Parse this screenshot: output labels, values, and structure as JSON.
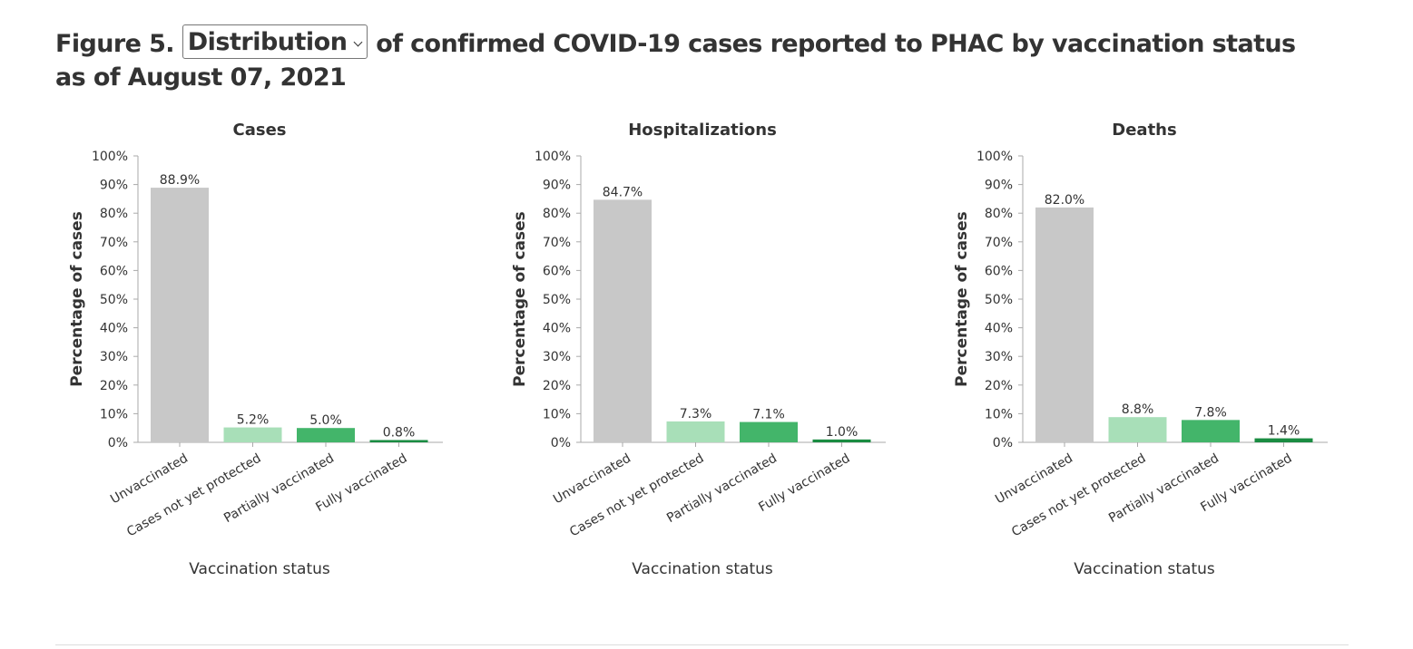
{
  "figure": {
    "label": "Figure 5.",
    "selector_value": "Distribution",
    "title_rest": "of confirmed COVID-19 cases reported to PHAC by vaccination status as of August 07, 2021"
  },
  "colors": {
    "unvaccinated": "#c8c8c8",
    "not_yet_protected": "#a8dfb8",
    "partially_vaccinated": "#43b56a",
    "fully_vaccinated": "#1a8c42",
    "axis": "#aaaaaa",
    "text": "#333333"
  },
  "chart_data": [
    {
      "type": "bar",
      "title": "Cases",
      "xlabel": "Vaccination status",
      "ylabel": "Percentage of cases",
      "ylim": [
        0,
        100
      ],
      "yticks": [
        "0%",
        "10%",
        "20%",
        "30%",
        "40%",
        "50%",
        "60%",
        "70%",
        "80%",
        "90%",
        "100%"
      ],
      "categories": [
        "Unvaccinated",
        "Cases not yet protected",
        "Partially vaccinated",
        "Fully vaccinated"
      ],
      "values": [
        88.9,
        5.2,
        5.0,
        0.8
      ],
      "labels": [
        "88.9%",
        "5.2%",
        "5.0%",
        "0.8%"
      ],
      "grid": false
    },
    {
      "type": "bar",
      "title": "Hospitalizations",
      "xlabel": "Vaccination status",
      "ylabel": "Percentage of cases",
      "ylim": [
        0,
        100
      ],
      "yticks": [
        "0%",
        "10%",
        "20%",
        "30%",
        "40%",
        "50%",
        "60%",
        "70%",
        "80%",
        "90%",
        "100%"
      ],
      "categories": [
        "Unvaccinated",
        "Cases not yet protected",
        "Partially vaccinated",
        "Fully vaccinated"
      ],
      "values": [
        84.7,
        7.3,
        7.1,
        1.0
      ],
      "labels": [
        "84.7%",
        "7.3%",
        "7.1%",
        "1.0%"
      ],
      "grid": false
    },
    {
      "type": "bar",
      "title": "Deaths",
      "xlabel": "Vaccination status",
      "ylabel": "Percentage of cases",
      "ylim": [
        0,
        100
      ],
      "yticks": [
        "0%",
        "10%",
        "20%",
        "30%",
        "40%",
        "50%",
        "60%",
        "70%",
        "80%",
        "90%",
        "100%"
      ],
      "categories": [
        "Unvaccinated",
        "Cases not yet protected",
        "Partially vaccinated",
        "Fully vaccinated"
      ],
      "values": [
        82.0,
        8.8,
        7.8,
        1.4
      ],
      "labels": [
        "82.0%",
        "8.8%",
        "7.8%",
        "1.4%"
      ],
      "grid": false
    }
  ]
}
